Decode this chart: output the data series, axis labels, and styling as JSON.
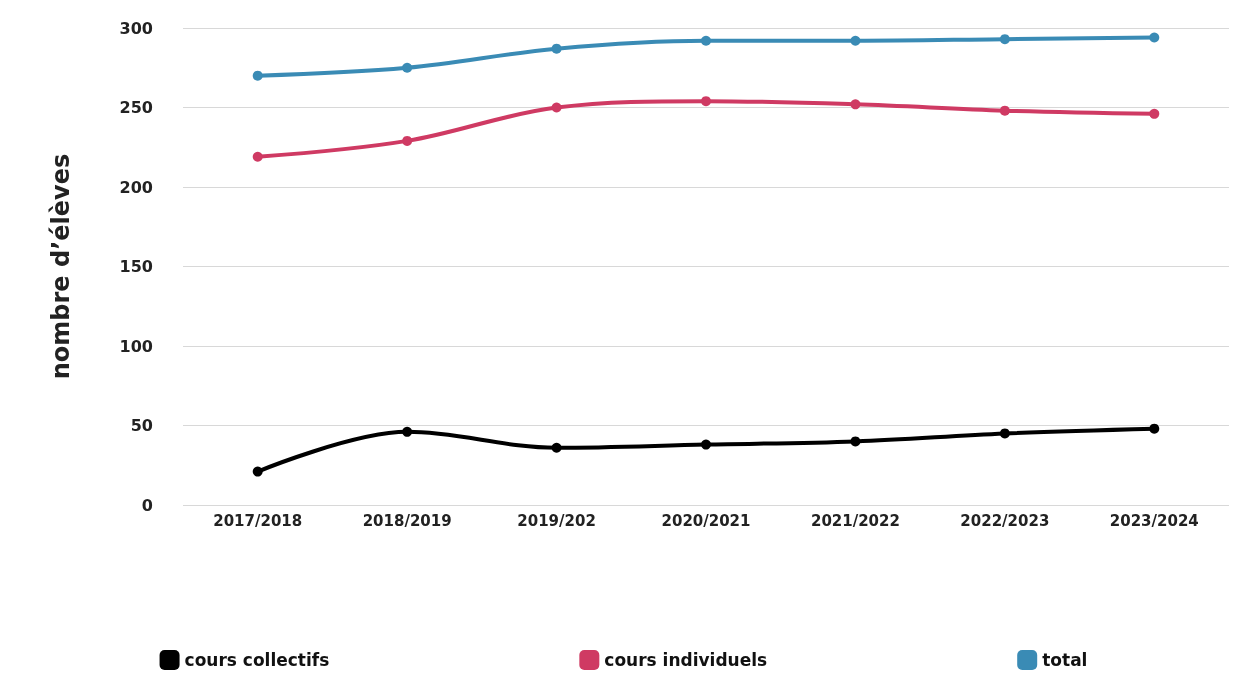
{
  "chart_data": {
    "type": "line",
    "ylabel": "nombre d’élèves",
    "categories": [
      "2017/2018",
      "2018/2019",
      "2019/202",
      "2020/2021",
      "2021/2022",
      "2022/2023",
      "2023/2024"
    ],
    "series": [
      {
        "name": "cours collectifs",
        "color": "#000000",
        "values": [
          21,
          46,
          36,
          38,
          40,
          45,
          48
        ]
      },
      {
        "name": "cours individuels",
        "color": "#cf3a63",
        "values": [
          219,
          229,
          250,
          254,
          252,
          248,
          246
        ]
      },
      {
        "name": "total",
        "color": "#3a8bb5",
        "values": [
          270,
          275,
          287,
          292,
          292,
          293,
          294
        ]
      }
    ],
    "ylim": [
      0,
      300
    ],
    "yticks": [
      0,
      50,
      100,
      150,
      200,
      250,
      300
    ],
    "grid": "y",
    "legend": "bottom",
    "marker": "circle",
    "line_style": "solid"
  }
}
